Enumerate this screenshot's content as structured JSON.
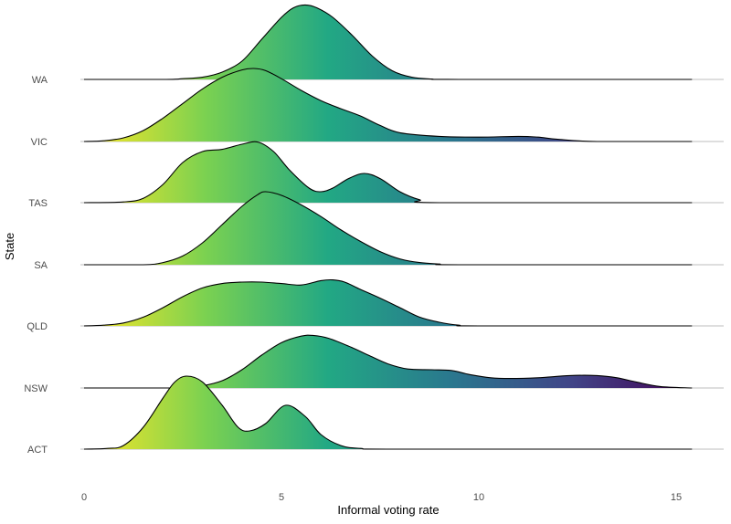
{
  "chart_data": {
    "type": "ridgeline",
    "title": "",
    "xlabel": "Informal voting rate",
    "ylabel": "State",
    "xlim": [
      0,
      15.4
    ],
    "x_ticks": [
      0,
      5,
      10,
      15
    ],
    "grid": false,
    "fill": "gradient along x, viridis palette",
    "gradient_colors": [
      "#fde725",
      "#7ad151",
      "#22a884",
      "#2a788e",
      "#414487",
      "#440154"
    ],
    "categories": [
      "ACT",
      "NSW",
      "QLD",
      "SA",
      "TAS",
      "VIC",
      "WA"
    ],
    "series": [
      {
        "name": "ACT",
        "x": [
          0,
          0.6,
          1,
          1.5,
          2,
          2.3,
          2.6,
          3,
          3.5,
          3.9,
          4.2,
          4.6,
          5.1,
          5.6,
          6,
          6.5,
          7,
          8,
          15.4
        ],
        "y": [
          0,
          0.01,
          0.05,
          0.3,
          0.7,
          0.92,
          1.0,
          0.92,
          0.6,
          0.3,
          0.25,
          0.35,
          0.6,
          0.45,
          0.2,
          0.05,
          0.01,
          0,
          0
        ]
      },
      {
        "name": "NSW",
        "x": [
          0,
          2.5,
          3,
          3.5,
          4,
          4.5,
          5,
          5.5,
          5.8,
          6.2,
          6.8,
          7.2,
          7.7,
          8.2,
          8.8,
          9.3,
          9.8,
          10.3,
          10.8,
          11.5,
          12.3,
          13,
          13.5,
          14,
          14.6,
          15.4
        ],
        "y": [
          0,
          0,
          0.03,
          0.1,
          0.25,
          0.45,
          0.62,
          0.71,
          0.72,
          0.68,
          0.55,
          0.45,
          0.33,
          0.26,
          0.25,
          0.24,
          0.18,
          0.14,
          0.13,
          0.14,
          0.17,
          0.17,
          0.14,
          0.08,
          0.02,
          0
        ]
      },
      {
        "name": "QLD",
        "x": [
          0,
          0.5,
          1,
          1.5,
          2,
          2.5,
          3,
          3.5,
          4,
          4.5,
          5,
          5.5,
          6,
          6.3,
          6.6,
          7,
          7.5,
          8,
          8.5,
          9,
          9.5,
          10,
          15.4
        ],
        "y": [
          0,
          0.01,
          0.04,
          0.12,
          0.25,
          0.4,
          0.52,
          0.58,
          0.6,
          0.6,
          0.58,
          0.56,
          0.62,
          0.63,
          0.6,
          0.5,
          0.38,
          0.25,
          0.12,
          0.05,
          0.01,
          0,
          0
        ]
      },
      {
        "name": "SA",
        "x": [
          0,
          1.5,
          2,
          2.5,
          3,
          3.5,
          4,
          4.4,
          4.6,
          5,
          5.5,
          6,
          6.5,
          7,
          7.5,
          8,
          8.5,
          9,
          9.5,
          15.4
        ],
        "y": [
          0,
          0,
          0.03,
          0.12,
          0.3,
          0.55,
          0.8,
          0.96,
          1.0,
          0.95,
          0.82,
          0.66,
          0.48,
          0.32,
          0.18,
          0.08,
          0.03,
          0.01,
          0,
          0
        ]
      },
      {
        "name": "TAS",
        "x": [
          0,
          1,
          1.5,
          2,
          2.5,
          3,
          3.5,
          4,
          4.4,
          4.8,
          5.2,
          5.7,
          6,
          6.3,
          6.7,
          7.1,
          7.5,
          8,
          8.5,
          9,
          15.4
        ],
        "y": [
          0,
          0.01,
          0.06,
          0.25,
          0.55,
          0.7,
          0.73,
          0.8,
          0.83,
          0.7,
          0.45,
          0.2,
          0.15,
          0.2,
          0.33,
          0.4,
          0.33,
          0.15,
          0.04,
          0,
          0
        ]
      },
      {
        "name": "VIC",
        "x": [
          0,
          0.5,
          1,
          1.5,
          2,
          2.5,
          3,
          3.5,
          4,
          4.3,
          4.6,
          5,
          5.5,
          6,
          6.5,
          7,
          7.5,
          8,
          9,
          10,
          11,
          11.5,
          12,
          13,
          15.4
        ],
        "y": [
          0,
          0.01,
          0.05,
          0.15,
          0.32,
          0.52,
          0.72,
          0.88,
          0.98,
          1.0,
          0.97,
          0.86,
          0.7,
          0.56,
          0.45,
          0.35,
          0.22,
          0.12,
          0.07,
          0.06,
          0.07,
          0.06,
          0.03,
          0,
          0
        ]
      },
      {
        "name": "WA",
        "x": [
          0,
          2,
          2.5,
          3,
          3.5,
          4,
          4.5,
          5,
          5.3,
          5.6,
          5.9,
          6.3,
          6.8,
          7.3,
          7.8,
          8.3,
          8.8,
          9.5,
          15.4
        ],
        "y": [
          0,
          0,
          0.01,
          0.03,
          0.1,
          0.25,
          0.55,
          0.85,
          0.98,
          1.02,
          0.98,
          0.85,
          0.6,
          0.32,
          0.12,
          0.03,
          0.005,
          0,
          0
        ]
      }
    ]
  }
}
